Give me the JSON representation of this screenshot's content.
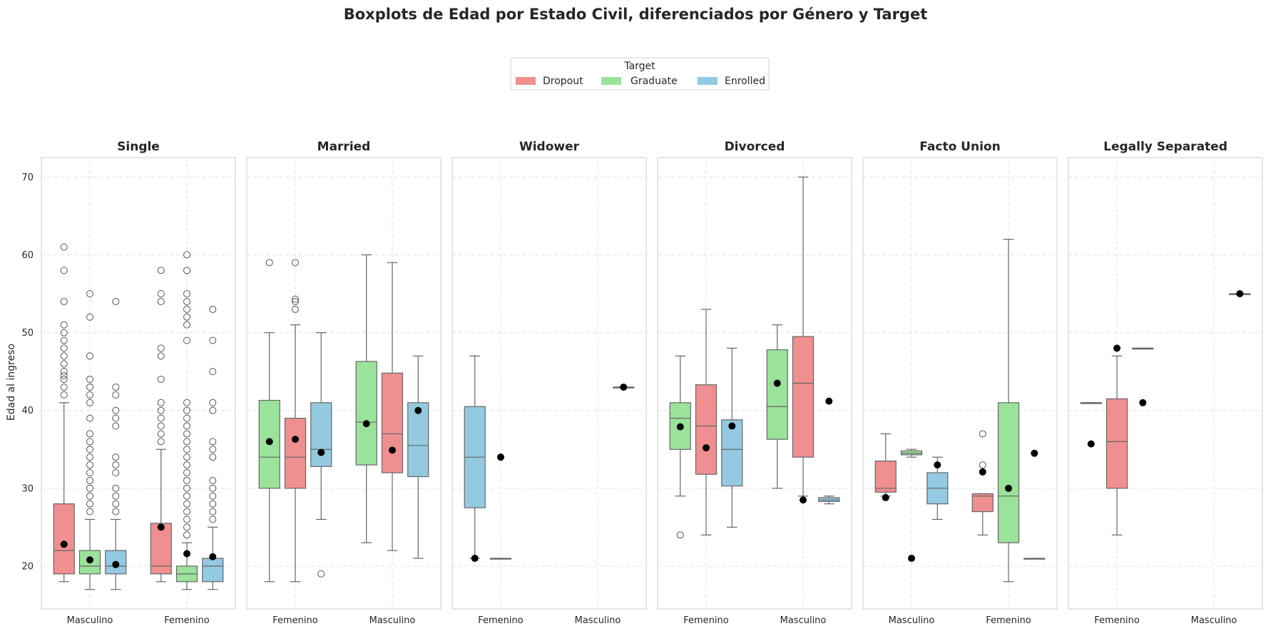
{
  "title": "Boxplots de Edad por Estado Civil, diferenciados por Género y Target",
  "colors": {
    "Dropout": "#F08F90",
    "Graduate": "#9BE39B",
    "Enrolled": "#93CAE1"
  },
  "legend": {
    "title": "Target",
    "entries": [
      "Dropout",
      "Graduate",
      "Enrolled"
    ],
    "placement": "top-center"
  },
  "chart_data": {
    "type": "boxplot",
    "ylabel": "Edad al ingreso",
    "ylim": [
      14.5,
      72.5
    ],
    "yticks": [
      20,
      30,
      40,
      50,
      60,
      70
    ],
    "grid": true,
    "panels": [
      {
        "title": "Single",
        "categories": [
          "Masculino",
          "Femenino"
        ],
        "groups": [
          {
            "category": "Masculino",
            "hue_order": [
              "Dropout",
              "Graduate",
              "Enrolled"
            ],
            "boxes": [
              {
                "target": "Dropout",
                "q1": 19,
                "median": 22,
                "q3": 28,
                "whislo": 18,
                "whishi": 41,
                "mean": 22.8,
                "fliers": [
                  42,
                  43,
                  44,
                  44.5,
                  45,
                  46,
                  47,
                  48,
                  49,
                  50,
                  51,
                  54,
                  58,
                  61
                ]
              },
              {
                "target": "Graduate",
                "q1": 19,
                "median": 20,
                "q3": 22,
                "whislo": 17,
                "whishi": 26,
                "mean": 20.8,
                "fliers": [
                  27,
                  28,
                  29,
                  30,
                  31,
                  32,
                  33,
                  34,
                  35,
                  36,
                  37,
                  39,
                  41,
                  42,
                  43,
                  44,
                  47,
                  52,
                  55
                ]
              },
              {
                "target": "Enrolled",
                "q1": 19,
                "median": 20,
                "q3": 22,
                "whislo": 17,
                "whishi": 26,
                "mean": 20.2,
                "fliers": [
                  27,
                  28,
                  29,
                  30,
                  32,
                  33,
                  34,
                  38,
                  39,
                  40,
                  42,
                  43,
                  54
                ]
              }
            ]
          },
          {
            "category": "Femenino",
            "hue_order": [
              "Dropout",
              "Graduate",
              "Enrolled"
            ],
            "boxes": [
              {
                "target": "Dropout",
                "q1": 19,
                "median": 20,
                "q3": 25.5,
                "whislo": 18,
                "whishi": 35,
                "mean": 25,
                "fliers": [
                  36,
                  37,
                  38,
                  39,
                  40,
                  41,
                  44,
                  47,
                  48,
                  54,
                  55,
                  58
                ]
              },
              {
                "target": "Graduate",
                "q1": 18,
                "median": 19,
                "q3": 20,
                "whislo": 17,
                "whishi": 23,
                "mean": 21.6,
                "fliers": [
                  24,
                  25,
                  26,
                  27,
                  28,
                  29,
                  30,
                  31,
                  32,
                  33,
                  34,
                  35,
                  36,
                  37,
                  38,
                  39,
                  40,
                  41,
                  49,
                  51,
                  52,
                  53,
                  54,
                  55,
                  58,
                  60
                ]
              },
              {
                "target": "Enrolled",
                "q1": 18,
                "median": 20,
                "q3": 21,
                "whislo": 17,
                "whishi": 25,
                "mean": 21.2,
                "fliers": [
                  26,
                  27,
                  28,
                  29,
                  30,
                  31,
                  34,
                  35,
                  36,
                  40,
                  41,
                  45,
                  49,
                  53
                ]
              }
            ]
          }
        ]
      },
      {
        "title": "Married",
        "categories": [
          "Femenino",
          "Masculino"
        ],
        "groups": [
          {
            "category": "Femenino",
            "hue_order": [
              "Graduate",
              "Dropout",
              "Enrolled"
            ],
            "boxes": [
              {
                "target": "Graduate",
                "q1": 30,
                "median": 34,
                "q3": 41.3,
                "whislo": 18,
                "whishi": 50,
                "mean": 36,
                "fliers": [
                  59
                ]
              },
              {
                "target": "Dropout",
                "q1": 30,
                "median": 34,
                "q3": 39,
                "whislo": 18,
                "whishi": 51,
                "mean": 36.3,
                "fliers": [
                  53,
                  54,
                  54.3,
                  59
                ]
              },
              {
                "target": "Enrolled",
                "q1": 32.8,
                "median": 35,
                "q3": 41,
                "whislo": 26,
                "whishi": 50,
                "mean": 34.6,
                "fliers": [
                  19
                ]
              }
            ]
          },
          {
            "category": "Masculino",
            "hue_order": [
              "Graduate",
              "Dropout",
              "Enrolled"
            ],
            "boxes": [
              {
                "target": "Graduate",
                "q1": 33,
                "median": 38.5,
                "q3": 46.3,
                "whislo": 23,
                "whishi": 60,
                "mean": 38.3,
                "fliers": []
              },
              {
                "target": "Dropout",
                "q1": 32,
                "median": 37,
                "q3": 44.8,
                "whislo": 22,
                "whishi": 59,
                "mean": 34.9,
                "fliers": []
              },
              {
                "target": "Enrolled",
                "q1": 31.5,
                "median": 35.5,
                "q3": 41,
                "whislo": 21,
                "whishi": 47,
                "mean": 40,
                "fliers": []
              }
            ]
          }
        ]
      },
      {
        "title": "Widower",
        "categories": [
          "Femenino",
          "Masculino"
        ],
        "groups": [
          {
            "category": "Femenino",
            "hue_order": [
              "Enrolled",
              "Graduate",
              "Dropout"
            ],
            "boxes": [
              {
                "target": "Enrolled",
                "q1": 27.5,
                "median": 34,
                "q3": 40.5,
                "whislo": 21,
                "whishi": 47,
                "mean": 21,
                "fliers": []
              },
              {
                "target": "Graduate",
                "q1": 21,
                "median": 21,
                "q3": 21,
                "whislo": 21,
                "whishi": 21,
                "mean": 34,
                "fliers": []
              }
            ]
          },
          {
            "category": "Masculino",
            "hue_order": [
              "Enrolled",
              "Graduate",
              "Dropout"
            ],
            "boxes": [
              {
                "target": "Dropout",
                "q1": 43,
                "median": 43,
                "q3": 43,
                "whislo": 43,
                "whishi": 43,
                "mean": 43,
                "fliers": []
              }
            ]
          }
        ]
      },
      {
        "title": "Divorced",
        "categories": [
          "Femenino",
          "Masculino"
        ],
        "groups": [
          {
            "category": "Femenino",
            "hue_order": [
              "Graduate",
              "Dropout",
              "Enrolled"
            ],
            "boxes": [
              {
                "target": "Graduate",
                "q1": 35,
                "median": 39,
                "q3": 41,
                "whislo": 29,
                "whishi": 47,
                "mean": 37.9,
                "fliers": [
                  24
                ]
              },
              {
                "target": "Dropout",
                "q1": 31.8,
                "median": 38,
                "q3": 43.3,
                "whislo": 24,
                "whishi": 53,
                "mean": 35.2,
                "fliers": []
              },
              {
                "target": "Enrolled",
                "q1": 30.3,
                "median": 35,
                "q3": 38.8,
                "whislo": 25,
                "whishi": 48,
                "mean": 38,
                "fliers": []
              }
            ]
          },
          {
            "category": "Masculino",
            "hue_order": [
              "Graduate",
              "Dropout",
              "Enrolled"
            ],
            "boxes": [
              {
                "target": "Graduate",
                "q1": 36.3,
                "median": 40.5,
                "q3": 47.8,
                "whislo": 30,
                "whishi": 51,
                "mean": 43.5,
                "fliers": []
              },
              {
                "target": "Dropout",
                "q1": 34,
                "median": 43.5,
                "q3": 49.5,
                "whislo": 29,
                "whishi": 70,
                "mean": 28.5,
                "fliers": []
              },
              {
                "target": "Enrolled",
                "q1": 28.3,
                "median": 28.5,
                "q3": 28.8,
                "whislo": 28,
                "whishi": 29,
                "mean": 41.2,
                "fliers": []
              }
            ]
          }
        ]
      },
      {
        "title": "Facto Union",
        "categories": [
          "Masculino",
          "Femenino"
        ],
        "groups": [
          {
            "category": "Masculino",
            "hue_order": [
              "Dropout",
              "Graduate",
              "Enrolled"
            ],
            "boxes": [
              {
                "target": "Dropout",
                "q1": 29.5,
                "median": 30,
                "q3": 33.5,
                "whislo": 29,
                "whishi": 37,
                "mean": 28.8,
                "fliers": []
              },
              {
                "target": "Graduate",
                "q1": 34.3,
                "median": 34.5,
                "q3": 34.8,
                "whislo": 34,
                "whishi": 35,
                "mean": 21,
                "fliers": []
              },
              {
                "target": "Enrolled",
                "q1": 28,
                "median": 30,
                "q3": 32,
                "whislo": 26,
                "whishi": 34,
                "mean": 33,
                "fliers": []
              }
            ]
          },
          {
            "category": "Femenino",
            "hue_order": [
              "Dropout",
              "Graduate",
              "Enrolled"
            ],
            "boxes": [
              {
                "target": "Dropout",
                "q1": 27,
                "median": 29,
                "q3": 29.3,
                "whislo": 24,
                "whishi": 29.3,
                "mean": 32.1,
                "fliers": [
                  33,
                  37
                ]
              },
              {
                "target": "Graduate",
                "q1": 23,
                "median": 29,
                "q3": 41,
                "whislo": 18,
                "whishi": 62,
                "mean": 30,
                "fliers": []
              },
              {
                "target": "Enrolled",
                "q1": 21,
                "median": 21,
                "q3": 21,
                "whislo": 21,
                "whishi": 21,
                "mean": 34.5,
                "fliers": []
              }
            ]
          }
        ]
      },
      {
        "title": "Legally Separated",
        "categories": [
          "Femenino",
          "Masculino"
        ],
        "groups": [
          {
            "category": "Femenino",
            "hue_order": [
              "Graduate",
              "Dropout",
              "Enrolled"
            ],
            "boxes": [
              {
                "target": "Graduate",
                "q1": 41,
                "median": 41,
                "q3": 41,
                "whislo": 41,
                "whishi": 41,
                "mean": 35.7,
                "fliers": []
              },
              {
                "target": "Dropout",
                "q1": 30,
                "median": 36,
                "q3": 41.5,
                "whislo": 24,
                "whishi": 47,
                "mean": 48,
                "fliers": []
              },
              {
                "target": "Enrolled",
                "q1": 48,
                "median": 48,
                "q3": 48,
                "whislo": 48,
                "whishi": 48,
                "mean": 41,
                "fliers": []
              }
            ]
          },
          {
            "category": "Masculino",
            "hue_order": [
              "Graduate",
              "Dropout",
              "Enrolled"
            ],
            "boxes": [
              {
                "target": "Enrolled",
                "q1": 55,
                "median": 55,
                "q3": 55,
                "whislo": 55,
                "whishi": 55,
                "mean": 55,
                "fliers": []
              }
            ]
          }
        ]
      }
    ]
  }
}
